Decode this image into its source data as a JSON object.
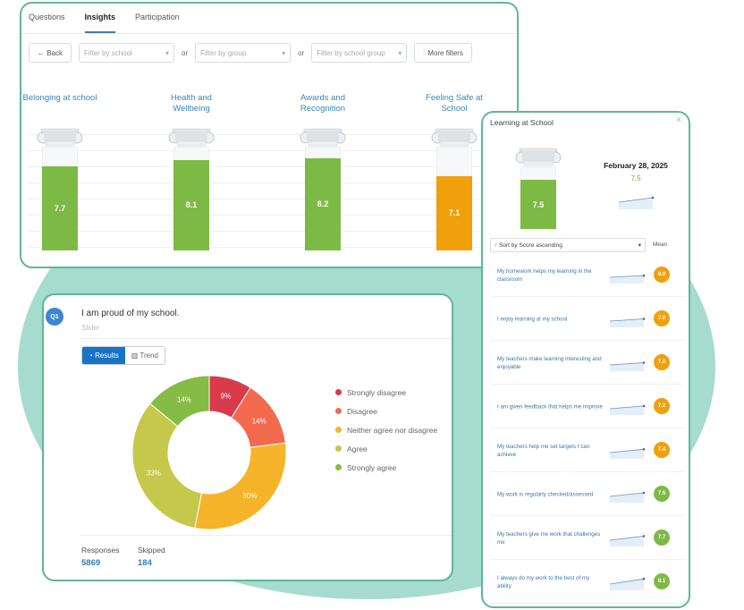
{
  "tabs": [
    {
      "label": "Questions"
    },
    {
      "label": "Insights",
      "active": true
    },
    {
      "label": "Participation"
    }
  ],
  "filters": {
    "back": "← Back",
    "school": "Filter by school",
    "group": "Filter by group",
    "school_group": "Filter by school group",
    "or": "or",
    "more": "More filters"
  },
  "categories": [
    {
      "label": "Belonging at school",
      "value": 7.7,
      "display": "7.7",
      "color": "#7dba45"
    },
    {
      "label": "Health and Wellbeing",
      "value": 8.1,
      "display": "8.1",
      "color": "#7dba45"
    },
    {
      "label": "Awards and Recognition",
      "value": 8.2,
      "display": "8.2",
      "color": "#7dba45"
    },
    {
      "label": "Feeling Safe at School",
      "value": 7.1,
      "display": "7.1",
      "color": "#f0a00a"
    },
    {
      "label": "Learning at School"
    }
  ],
  "question": {
    "badge": "Q1",
    "title": "I am proud of my school.",
    "type": "Slider",
    "results_label": "Results",
    "trend_label": "Trend",
    "responses_label": "Responses",
    "responses": "5869",
    "skipped_label": "Skipped",
    "skipped": "184"
  },
  "chart_data": {
    "type": "pie",
    "title": "I am proud of my school.",
    "categories": [
      "Strongly disagree",
      "Disagree",
      "Neither agree nor disagree",
      "Agree",
      "Strongly agree"
    ],
    "values": [
      9,
      14,
      30,
      33,
      14
    ],
    "labels": [
      "9%",
      "14%",
      "30%",
      "33%",
      "14%"
    ],
    "colors": [
      "#d93a4b",
      "#f26a4e",
      "#f6b42a",
      "#c5c84a",
      "#86bb46"
    ],
    "legend": "right"
  },
  "side": {
    "title": "Learning at School",
    "close": "×",
    "score": "7.5",
    "score_value": 7.5,
    "date": "February 28, 2025",
    "date_score": "7.5",
    "sort": "Sort by Score ascending",
    "mean": "Mean",
    "items": [
      {
        "text": "My homework helps my learning in the classroom",
        "score": "6.8",
        "color": "#f0a00a"
      },
      {
        "text": "I enjoy learning at my school",
        "score": "7.0",
        "color": "#f0a00a"
      },
      {
        "text": "My teachers make learning interesting and enjoyable",
        "score": "7.0",
        "color": "#f0a00a"
      },
      {
        "text": "I am given feedback that helps me improve",
        "score": "7.2",
        "color": "#f0a00a"
      },
      {
        "text": "My teachers help me set targets I can achieve",
        "score": "7.4",
        "color": "#f0a00a"
      },
      {
        "text": "My work is regularly checked/assessed",
        "score": "7.5",
        "color": "#7dba45"
      },
      {
        "text": "My teachers give me work that challenges me",
        "score": "7.7",
        "color": "#7dba45"
      },
      {
        "text": "I always do my work to the best of my ability",
        "score": "8.1",
        "color": "#7dba45"
      }
    ]
  }
}
